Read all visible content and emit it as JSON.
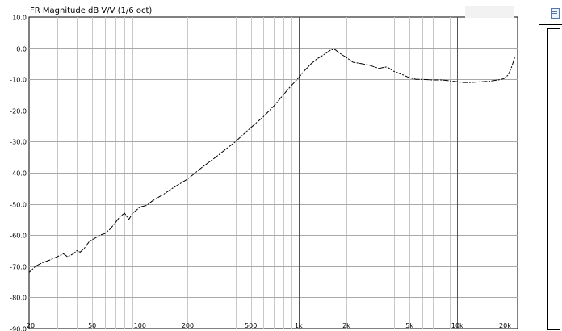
{
  "chart_data": {
    "type": "line",
    "title": "FR Magnitude dB V/V (1/6 oct)",
    "xscale": "log",
    "xlim": [
      20,
      24000
    ],
    "ylim": [
      -90,
      10
    ],
    "grid": true,
    "x_tick_labels": [
      {
        "value": 20,
        "label": "20"
      },
      {
        "value": 50,
        "label": "50"
      },
      {
        "value": 100,
        "label": "100"
      },
      {
        "value": 200,
        "label": "200"
      },
      {
        "value": 500,
        "label": "500"
      },
      {
        "value": 1000,
        "label": "1k"
      },
      {
        "value": 2000,
        "label": "2k"
      },
      {
        "value": 5000,
        "label": "5k"
      },
      {
        "value": 10000,
        "label": "10k"
      },
      {
        "value": 20000,
        "label": "20k"
      }
    ],
    "y_tick_labels": [
      {
        "value": 10,
        "label": "10.0"
      },
      {
        "value": 0,
        "label": "0.0"
      },
      {
        "value": -10,
        "label": "-10.0"
      },
      {
        "value": -20,
        "label": "-20.0"
      },
      {
        "value": -30,
        "label": "-30.0"
      },
      {
        "value": -40,
        "label": "-40.0"
      },
      {
        "value": -50,
        "label": "-50.0"
      },
      {
        "value": -60,
        "label": "-60.0"
      },
      {
        "value": -70,
        "label": "-70.0"
      },
      {
        "value": -80,
        "label": "-80.0"
      },
      {
        "value": -90,
        "label": "-90.0"
      }
    ],
    "series": [
      {
        "color": "#000000",
        "x": [
          20,
          22,
          24,
          27,
          30,
          33,
          35,
          38,
          40,
          42,
          45,
          48,
          52,
          56,
          60,
          65,
          70,
          75,
          80,
          85,
          90,
          95,
          100,
          110,
          120,
          140,
          160,
          200,
          250,
          300,
          400,
          500,
          600,
          700,
          800,
          900,
          1000,
          1100,
          1200,
          1300,
          1400,
          1500,
          1600,
          1700,
          1800,
          2000,
          2200,
          2500,
          2800,
          3200,
          3600,
          4000,
          4500,
          5000,
          5500,
          6000,
          7000,
          8000,
          9000,
          10000,
          11000,
          12000,
          14000,
          16000,
          18000,
          19000,
          20000,
          21000,
          22000,
          23000
        ],
        "y": [
          -72,
          -70,
          -69,
          -68,
          -67,
          -66,
          -67,
          -66,
          -65,
          -65.5,
          -64,
          -62,
          -61,
          -60,
          -59.5,
          -58,
          -56,
          -54,
          -53,
          -55,
          -53,
          -52,
          -51,
          -50.5,
          -49,
          -47,
          -45,
          -42,
          -38,
          -35,
          -30,
          -25.5,
          -22,
          -18.5,
          -15,
          -12,
          -9.5,
          -7,
          -5,
          -3.5,
          -2.5,
          -1.5,
          -0.5,
          -0.5,
          -1.5,
          -3,
          -4.5,
          -5,
          -5.5,
          -6.5,
          -6,
          -7.5,
          -8.5,
          -9.5,
          -10,
          -10,
          -10.2,
          -10.2,
          -10.5,
          -10.8,
          -11,
          -11,
          -10.8,
          -10.6,
          -10.2,
          -10,
          -9.6,
          -8.5,
          -6,
          -3
        ]
      }
    ]
  },
  "icons": {
    "document": "document-icon"
  }
}
